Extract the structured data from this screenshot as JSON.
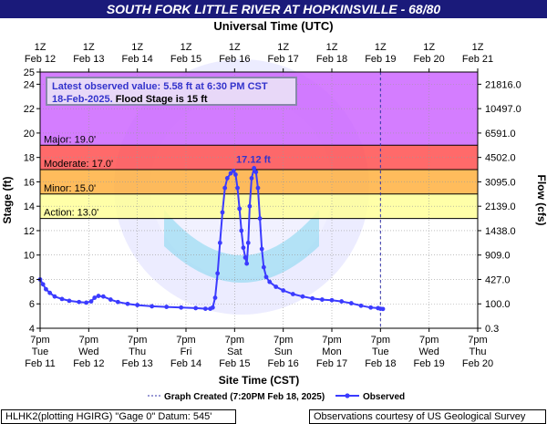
{
  "header": {
    "title": "SOUTH FORK LITTLE RIVER AT HOPKINSVILLE - 68/80",
    "top_axis_label": "Universal Time (UTC)"
  },
  "latest": {
    "line1": "Latest observed value: 5.58 ft at 6:30 PM CST",
    "date_part": "18-Feb-2025.",
    "flood_part": " Flood Stage is 15 ft"
  },
  "footer": {
    "left": "HLHK2(plotting HGIRG) \"Gage 0\" Datum: 545'",
    "right": "Observations courtesy of US Geological Survey"
  },
  "legend": {
    "graph_created": "Graph Created (7:20PM Feb 18, 2025)",
    "observed": "Observed"
  },
  "chart_data": {
    "type": "line",
    "xlabel": "Site Time (CST)",
    "ylabel": "Stage (ft)",
    "y2label": "Flow (cfs)",
    "ylim": [
      4,
      25
    ],
    "xlim_days": [
      0,
      9
    ],
    "bottom_ticks": [
      [
        "7pm",
        "Tue",
        "Feb 11"
      ],
      [
        "7pm",
        "Wed",
        "Feb 12"
      ],
      [
        "7pm",
        "Thu",
        "Feb 13"
      ],
      [
        "7pm",
        "Fri",
        "Feb 14"
      ],
      [
        "7pm",
        "Sat",
        "Feb 15"
      ],
      [
        "7pm",
        "Sun",
        "Feb 16"
      ],
      [
        "7pm",
        "Mon",
        "Feb 17"
      ],
      [
        "7pm",
        "Tue",
        "Feb 18"
      ],
      [
        "7pm",
        "Wed",
        "Feb 19"
      ],
      [
        "7pm",
        "Thu",
        "Feb 20"
      ]
    ],
    "top_ticks": [
      [
        "1Z",
        "Feb 12"
      ],
      [
        "1Z",
        "Feb 13"
      ],
      [
        "1Z",
        "Feb 14"
      ],
      [
        "1Z",
        "Feb 15"
      ],
      [
        "1Z",
        "Feb 16"
      ],
      [
        "1Z",
        "Feb 17"
      ],
      [
        "1Z",
        "Feb 18"
      ],
      [
        "1Z",
        "Feb 19"
      ],
      [
        "1Z",
        "Feb 20"
      ],
      [
        "1Z",
        "Feb 21"
      ]
    ],
    "y_ticks": [
      4,
      6,
      8,
      10,
      12,
      14,
      16,
      18,
      20,
      22,
      24,
      25
    ],
    "flow_ticks": [
      {
        "stage": 4.0,
        "label": "0.3"
      },
      {
        "stage": 6.0,
        "label": "100.0"
      },
      {
        "stage": 8.0,
        "label": "427.0"
      },
      {
        "stage": 10.0,
        "label": "909.0"
      },
      {
        "stage": 12.0,
        "label": "1438.0"
      },
      {
        "stage": 14.0,
        "label": "2139.0"
      },
      {
        "stage": 16.0,
        "label": "3095.0"
      },
      {
        "stage": 18.0,
        "label": "4502.0"
      },
      {
        "stage": 20.0,
        "label": "6591.0"
      },
      {
        "stage": 22.0,
        "label": "10497.0"
      },
      {
        "stage": 24.0,
        "label": "21816.0"
      }
    ],
    "bands": [
      {
        "name": "Action",
        "label": "Action: 13.0'",
        "from": 13,
        "to": 15,
        "color": "#ffff99"
      },
      {
        "name": "Minor",
        "label": "Minor: 15.0'",
        "from": 15,
        "to": 17,
        "color": "#ffb040"
      },
      {
        "name": "Moderate",
        "label": "Moderate: 17.0'",
        "from": 17,
        "to": 19,
        "color": "#ff5050"
      },
      {
        "name": "Major",
        "label": "Major: 19.0'",
        "from": 19,
        "to": 25,
        "color": "#cc66ff"
      }
    ],
    "crest_label": "17.12 ft",
    "crest": {
      "x": 4.35,
      "y": 17.12
    },
    "now_x": 7.0,
    "series": [
      {
        "name": "Observed",
        "color": "#3b3bff",
        "points": [
          [
            0.0,
            8.0
          ],
          [
            0.06,
            7.6
          ],
          [
            0.12,
            7.2
          ],
          [
            0.2,
            6.9
          ],
          [
            0.3,
            6.6
          ],
          [
            0.45,
            6.4
          ],
          [
            0.6,
            6.25
          ],
          [
            0.8,
            6.15
          ],
          [
            0.95,
            6.1
          ],
          [
            1.05,
            6.2
          ],
          [
            1.12,
            6.5
          ],
          [
            1.2,
            6.65
          ],
          [
            1.3,
            6.6
          ],
          [
            1.45,
            6.35
          ],
          [
            1.6,
            6.15
          ],
          [
            1.8,
            6.0
          ],
          [
            2.0,
            5.9
          ],
          [
            2.3,
            5.8
          ],
          [
            2.6,
            5.75
          ],
          [
            2.9,
            5.7
          ],
          [
            3.2,
            5.65
          ],
          [
            3.4,
            5.6
          ],
          [
            3.5,
            5.6
          ],
          [
            3.55,
            5.7
          ],
          [
            3.6,
            6.5
          ],
          [
            3.65,
            8.5
          ],
          [
            3.7,
            11.0
          ],
          [
            3.75,
            13.5
          ],
          [
            3.8,
            15.5
          ],
          [
            3.85,
            16.3
          ],
          [
            3.92,
            16.7
          ],
          [
            3.98,
            16.9
          ],
          [
            4.02,
            16.6
          ],
          [
            4.06,
            15.5
          ],
          [
            4.1,
            13.8
          ],
          [
            4.14,
            12.0
          ],
          [
            4.18,
            10.6
          ],
          [
            4.22,
            9.8
          ],
          [
            4.25,
            9.3
          ],
          [
            4.28,
            11.0
          ],
          [
            4.31,
            14.0
          ],
          [
            4.35,
            16.3
          ],
          [
            4.4,
            17.12
          ],
          [
            4.44,
            16.8
          ],
          [
            4.48,
            15.5
          ],
          [
            4.52,
            13.0
          ],
          [
            4.56,
            10.5
          ],
          [
            4.6,
            9.0
          ],
          [
            4.65,
            8.2
          ],
          [
            4.72,
            7.8
          ],
          [
            4.85,
            7.4
          ],
          [
            5.0,
            7.1
          ],
          [
            5.2,
            6.8
          ],
          [
            5.4,
            6.6
          ],
          [
            5.6,
            6.45
          ],
          [
            5.8,
            6.35
          ],
          [
            6.0,
            6.3
          ],
          [
            6.2,
            6.2
          ],
          [
            6.4,
            6.05
          ],
          [
            6.6,
            5.85
          ],
          [
            6.8,
            5.7
          ],
          [
            6.95,
            5.65
          ],
          [
            7.0,
            5.6
          ],
          [
            7.05,
            5.58
          ]
        ]
      }
    ]
  }
}
